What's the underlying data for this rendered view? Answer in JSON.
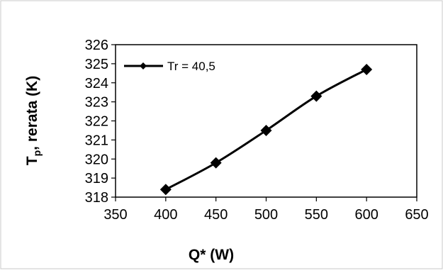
{
  "chart_data": {
    "type": "line",
    "xlabel": "Q* (W)",
    "ylabel_main": "T",
    "ylabel_sub": "p",
    "ylabel_rest": ", rerata (K)",
    "xlim": [
      350,
      650
    ],
    "ylim": [
      318,
      326
    ],
    "x_ticks": [
      350,
      400,
      450,
      500,
      550,
      600,
      650
    ],
    "y_ticks": [
      318,
      319,
      320,
      321,
      322,
      323,
      324,
      325,
      326
    ],
    "grid": false,
    "legend_position": "top-left",
    "series": [
      {
        "name": "Tr = 40,5",
        "marker": "diamond",
        "color": "#000000",
        "x": [
          400,
          450,
          500,
          550,
          600
        ],
        "y": [
          318.4,
          319.8,
          321.5,
          323.3,
          324.7
        ]
      }
    ]
  }
}
